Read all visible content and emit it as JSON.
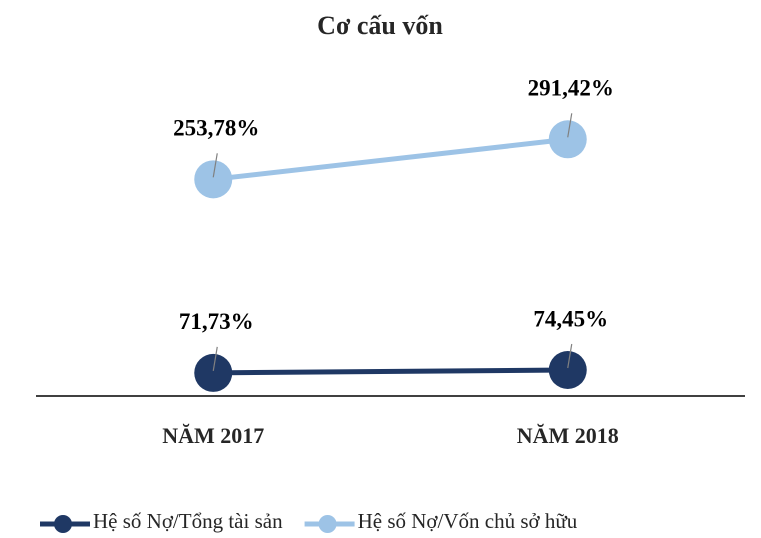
{
  "chart_data": {
    "type": "line",
    "title": "Cơ cấu vốn",
    "categories": [
      "NĂM 2017",
      "NĂM 2018"
    ],
    "series": [
      {
        "name": "Hệ số Nợ/Tổng tài sản",
        "color": "#1f3864",
        "values": [
          71.73,
          74.45
        ],
        "value_labels": [
          "71,73%",
          "74,45%"
        ]
      },
      {
        "name": "Hệ số Nợ/Vốn chủ sở hữu",
        "color": "#9dc3e6",
        "values": [
          253.78,
          291.42
        ],
        "value_labels": [
          "253,78%",
          "291,42%"
        ]
      }
    ],
    "ylim": [
      50,
      350
    ],
    "legend": "bottom"
  }
}
